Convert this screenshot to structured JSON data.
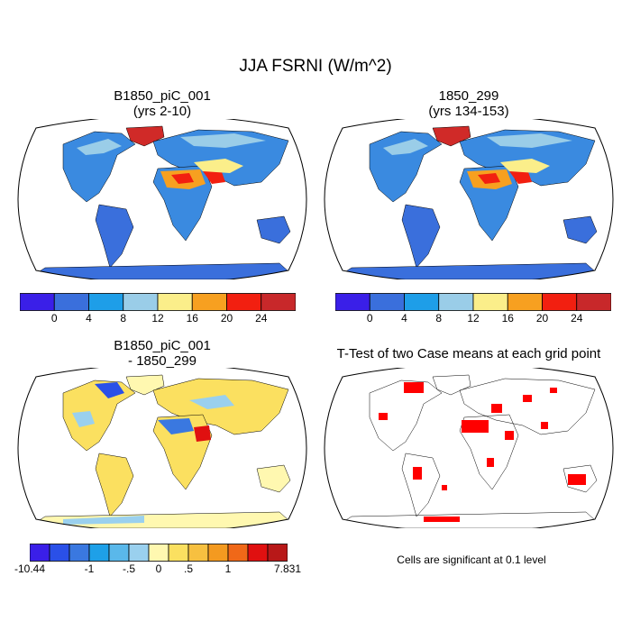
{
  "title": "JJA FSRNI (W/m^2)",
  "panels": [
    {
      "title_line1": "B1850_piC_001",
      "title_line2": "(yrs 2-10)"
    },
    {
      "title_line1": "1850_299",
      "title_line2": "(yrs 134-153)"
    },
    {
      "title_line1": "B1850_piC_001",
      "title_line2": "- 1850_299"
    },
    {
      "title_line1": "T-Test of two Case means at each grid point",
      "title_line2": ""
    }
  ],
  "colorbar_abs": {
    "colors": [
      "#3a1fe8",
      "#3a6fdc",
      "#1e9ee8",
      "#9acde8",
      "#fbee8a",
      "#f7a020",
      "#f21f10",
      "#c8282a"
    ],
    "labels": [
      "0",
      "4",
      "8",
      "12",
      "16",
      "20",
      "24"
    ]
  },
  "colorbar_diff": {
    "colors": [
      "#3a1fe8",
      "#2a50e8",
      "#3a78e0",
      "#1ea0e8",
      "#5ab8ea",
      "#9ad0ee",
      "#fff8b0",
      "#fbe060",
      "#f7c040",
      "#f49a20",
      "#f06818",
      "#e01010",
      "#b81818"
    ],
    "labels": [
      "-10.44",
      "-1",
      "-.5",
      "0",
      ".5",
      "1",
      "7.831"
    ]
  },
  "note": "Cells are significant at 0.1 level",
  "legend_colors": {
    "significant": "#ff0000"
  }
}
